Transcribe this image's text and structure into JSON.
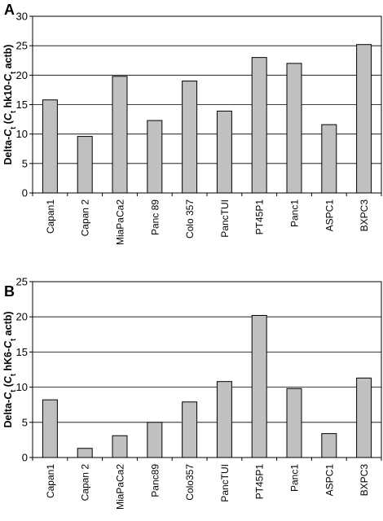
{
  "chart_data": [
    {
      "panel": "A",
      "type": "bar",
      "ylabel_parts": [
        "Delta-",
        "C",
        "t",
        " (",
        "C",
        "t",
        " hk10-",
        "C",
        "t",
        " actb)"
      ],
      "ylim": [
        0,
        30
      ],
      "yticks": [
        "0",
        "5",
        "10",
        "15",
        "20",
        "25",
        "30"
      ],
      "grid": true,
      "categories": [
        "Capan1",
        "Capan 2",
        "MiaPaCa2",
        "Panc 89",
        "Colo 357",
        "PancTUI",
        "PT45P1",
        "Panc1",
        "ASPC1",
        "BXPC3"
      ],
      "values": [
        15.8,
        9.6,
        19.8,
        12.3,
        19.0,
        13.9,
        23.0,
        22.0,
        11.6,
        25.2
      ],
      "bar_color": "#c0c0c0"
    },
    {
      "panel": "B",
      "type": "bar",
      "ylabel_parts": [
        "Delta-",
        "C",
        "t",
        " (",
        "C",
        "t",
        " hK6-",
        "C",
        "t",
        " actb)"
      ],
      "ylim": [
        0,
        25
      ],
      "yticks": [
        "0",
        "5",
        "10",
        "15",
        "20",
        "25"
      ],
      "grid": true,
      "categories": [
        "Capan1",
        "Capan 2",
        "MiaPaCa2",
        "Panc89",
        "Colo357",
        "PancTUI",
        "PT45P1",
        "Panc1",
        "ASPC1",
        "BXPC3"
      ],
      "values": [
        8.2,
        1.3,
        3.1,
        5.0,
        7.9,
        10.8,
        20.2,
        9.8,
        3.4,
        11.3
      ],
      "bar_color": "#c0c0c0"
    }
  ]
}
